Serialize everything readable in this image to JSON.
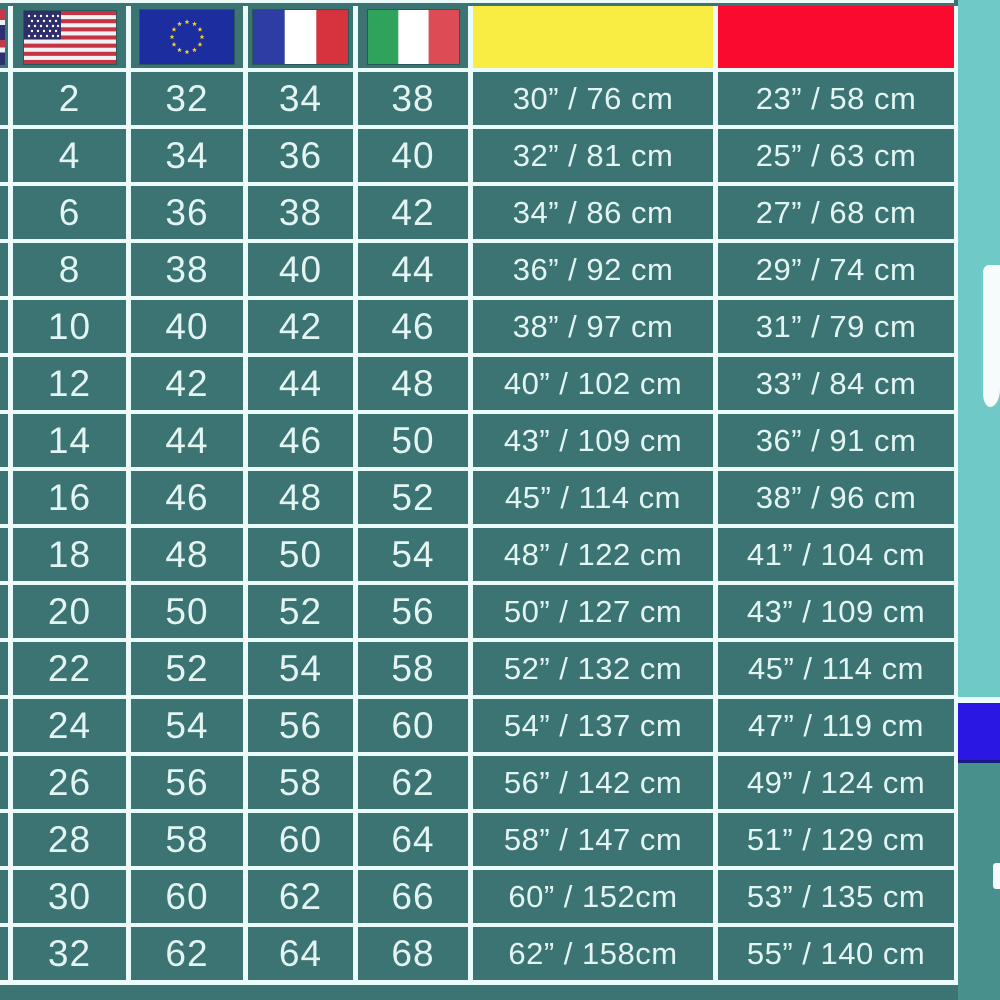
{
  "colors": {
    "cell_teal": "#3B7472",
    "grid_line": "#EAFBF9",
    "text_mint": "#E3F5F3",
    "bust_header_yellow": "#F9ED43",
    "waist_header_red": "#FB0A30",
    "side_upper_teal": "#6FC9C6",
    "side_lower_teal": "#48908C",
    "side_blue_block": "#2A17E3"
  },
  "header": {
    "icons": [
      "uk-flag-partial-icon",
      "us-flag-icon",
      "eu-flag-icon",
      "france-flag-icon",
      "italy-flag-icon",
      "yellow-header-block",
      "red-header-block"
    ]
  },
  "chart_data": {
    "type": "table",
    "columns": [
      "us_size",
      "eu_size",
      "fr_size",
      "it_size",
      "bust",
      "waist"
    ],
    "header_icons": [
      "us-flag",
      "eu-flag",
      "france-flag",
      "italy-flag",
      "yellow-block",
      "red-block"
    ],
    "rows": [
      {
        "us": "2",
        "eu": "32",
        "fr": "34",
        "it": "38",
        "bust": "30” / 76 cm",
        "waist": "23” / 58 cm"
      },
      {
        "us": "4",
        "eu": "34",
        "fr": "36",
        "it": "40",
        "bust": "32” / 81 cm",
        "waist": "25” / 63 cm"
      },
      {
        "us": "6",
        "eu": "36",
        "fr": "38",
        "it": "42",
        "bust": "34” / 86 cm",
        "waist": "27” / 68 cm"
      },
      {
        "us": "8",
        "eu": "38",
        "fr": "40",
        "it": "44",
        "bust": "36” / 92 cm",
        "waist": "29” / 74 cm"
      },
      {
        "us": "10",
        "eu": "40",
        "fr": "42",
        "it": "46",
        "bust": "38” / 97 cm",
        "waist": "31” / 79 cm"
      },
      {
        "us": "12",
        "eu": "42",
        "fr": "44",
        "it": "48",
        "bust": "40” / 102 cm",
        "waist": "33” / 84 cm"
      },
      {
        "us": "14",
        "eu": "44",
        "fr": "46",
        "it": "50",
        "bust": "43” / 109 cm",
        "waist": "36” / 91 cm"
      },
      {
        "us": "16",
        "eu": "46",
        "fr": "48",
        "it": "52",
        "bust": "45” / 114 cm",
        "waist": "38” / 96 cm"
      },
      {
        "us": "18",
        "eu": "48",
        "fr": "50",
        "it": "54",
        "bust": "48” / 122 cm",
        "waist": "41” / 104 cm"
      },
      {
        "us": "20",
        "eu": "50",
        "fr": "52",
        "it": "56",
        "bust": "50” / 127 cm",
        "waist": "43” / 109 cm"
      },
      {
        "us": "22",
        "eu": "52",
        "fr": "54",
        "it": "58",
        "bust": "52” / 132 cm",
        "waist": "45” / 114 cm"
      },
      {
        "us": "24",
        "eu": "54",
        "fr": "56",
        "it": "60",
        "bust": "54” / 137 cm",
        "waist": "47” / 119 cm"
      },
      {
        "us": "26",
        "eu": "56",
        "fr": "58",
        "it": "62",
        "bust": "56” / 142 cm",
        "waist": "49” / 124 cm"
      },
      {
        "us": "28",
        "eu": "58",
        "fr": "60",
        "it": "64",
        "bust": "58” / 147 cm",
        "waist": "51” / 129 cm"
      },
      {
        "us": "30",
        "eu": "60",
        "fr": "62",
        "it": "66",
        "bust": "60” / 152cm",
        "waist": "53” / 135 cm"
      },
      {
        "us": "32",
        "eu": "62",
        "fr": "64",
        "it": "68",
        "bust": "62” / 158cm",
        "waist": "55” / 140 cm"
      }
    ]
  }
}
